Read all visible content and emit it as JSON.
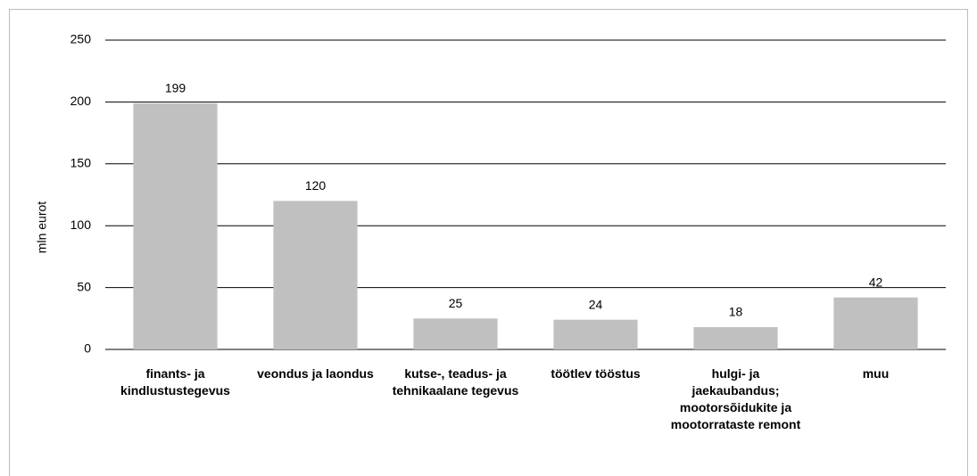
{
  "chart_data": {
    "type": "bar",
    "y_axis_label": "mln eurot",
    "categories": [
      "finants- ja kindlustustegevus",
      "veondus ja laondus",
      "kutse-, teadus- ja tehnikaalane tegevus",
      "töötlev tööstus",
      "hulgi- ja jaekaubandus; mootorsõidukite ja mootorrataste remont",
      "muu"
    ],
    "values": [
      199,
      120,
      25,
      24,
      18,
      42
    ],
    "color": "#c0c0c0",
    "ylim": [
      0,
      250
    ],
    "yticks": [
      0,
      50,
      100,
      150,
      200,
      250
    ],
    "grid": true
  }
}
